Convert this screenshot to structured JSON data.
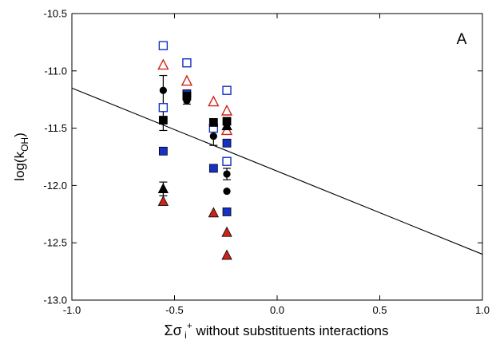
{
  "chart_data": {
    "type": "scatter",
    "panel_label": "A",
    "xlim": [
      -1.0,
      1.0
    ],
    "ylim": [
      -13.0,
      -10.5
    ],
    "x_ticks": [
      -1.0,
      -0.5,
      0.0,
      0.5,
      1.0
    ],
    "x_tick_labels": [
      "-1.0",
      "-0.5",
      "0.0",
      "0.5",
      "1.0"
    ],
    "y_ticks": [
      -10.5,
      -11.0,
      -11.5,
      -12.0,
      -12.5,
      -13.0
    ],
    "y_tick_labels": [
      "-10.5",
      "-11.0",
      "-11.5",
      "-12.0",
      "-12.5",
      "-13.0"
    ],
    "ylabel": {
      "main": "log(k",
      "sub": "OH",
      "end": ")"
    },
    "xlabel": {
      "sigma": "Σσ",
      "sub": " i",
      "sup": "+",
      "rest": " without substituents interactions"
    },
    "grid": false,
    "colors": {
      "blue": "#1432c8",
      "red": "#cc2418",
      "black": "#000000"
    },
    "fit_line": {
      "x": [
        -1.0,
        1.0
      ],
      "y": [
        -11.15,
        -12.6
      ]
    },
    "series": [
      {
        "marker": "square-open",
        "color": "#1432c8",
        "points": [
          [
            -0.555,
            -10.78
          ],
          [
            -0.555,
            -11.32
          ],
          [
            -0.44,
            -10.93
          ],
          [
            -0.31,
            -11.5
          ],
          [
            -0.245,
            -11.17
          ],
          [
            -0.245,
            -11.79
          ]
        ]
      },
      {
        "marker": "square-filled",
        "color": "#1432c8",
        "points": [
          [
            -0.555,
            -11.7
          ],
          [
            -0.44,
            -11.2
          ],
          [
            -0.31,
            -11.85
          ],
          [
            -0.245,
            -11.63
          ],
          [
            -0.245,
            -12.23
          ]
        ]
      },
      {
        "marker": "triangle-open",
        "color": "#cc2418",
        "points": [
          [
            -0.555,
            -10.95
          ],
          [
            -0.44,
            -11.09
          ],
          [
            -0.31,
            -11.27
          ],
          [
            -0.245,
            -11.35
          ],
          [
            -0.245,
            -11.52
          ]
        ]
      },
      {
        "marker": "triangle-filled",
        "color": "#cc2418",
        "points": [
          [
            -0.555,
            -12.14
          ],
          [
            -0.31,
            -12.24
          ],
          [
            -0.245,
            -12.41
          ],
          [
            -0.245,
            -12.61
          ]
        ]
      },
      {
        "marker": "circle-filled",
        "color": "#000000",
        "points": [
          [
            -0.555,
            -11.17
          ],
          [
            -0.44,
            -11.26
          ],
          [
            -0.31,
            -11.57
          ],
          [
            -0.245,
            -11.46
          ],
          [
            -0.245,
            -11.9
          ],
          [
            -0.245,
            -12.05
          ]
        ],
        "errors": [
          0.13,
          0.03,
          0.08,
          0.05,
          0.05,
          0
        ]
      },
      {
        "marker": "square-filled",
        "color": "#000000",
        "points": [
          [
            -0.555,
            -11.43
          ],
          [
            -0.44,
            -11.22
          ],
          [
            -0.31,
            -11.45
          ],
          [
            -0.245,
            -11.44
          ]
        ],
        "errors": [
          0.09,
          0.03,
          0.03,
          0.03
        ]
      },
      {
        "marker": "triangle-filled",
        "color": "#000000",
        "points": [
          [
            -0.555,
            -12.03
          ],
          [
            -0.245,
            -11.48
          ]
        ],
        "errors": [
          0.06,
          0.03
        ]
      }
    ]
  }
}
